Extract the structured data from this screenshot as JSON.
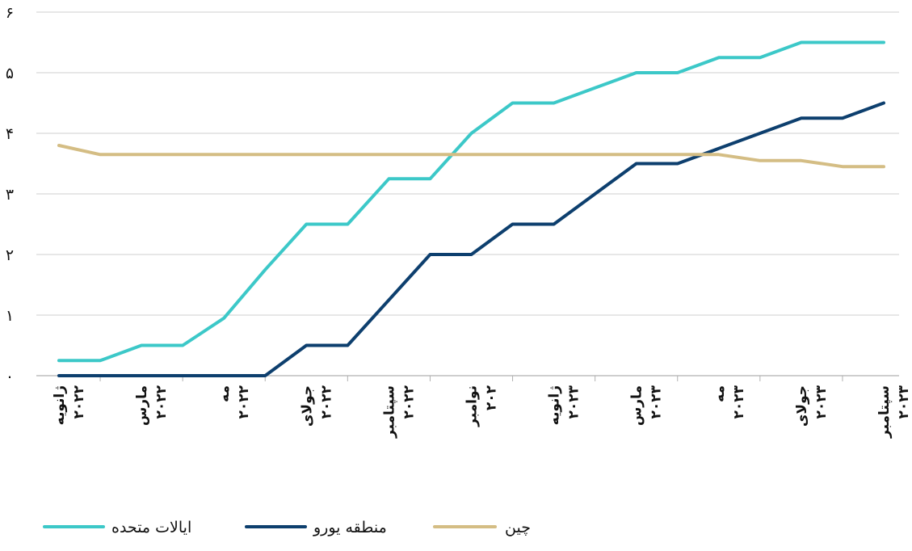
{
  "chart_data": {
    "type": "line",
    "title": "",
    "xlabel": "",
    "ylabel": "",
    "ylim": [
      0,
      6
    ],
    "yticks": [
      0,
      1,
      2,
      3,
      4,
      5,
      6
    ],
    "ytick_labels": [
      "۰",
      "۱",
      "۲",
      "۳",
      "۴",
      "۵",
      "۶"
    ],
    "grid": "horizontal",
    "legend_position": "bottom",
    "x_count": 21,
    "tick_labels": [
      {
        "index": 0,
        "line1": "ژانویه",
        "line2": "۲۰۲۲"
      },
      {
        "index": 2,
        "line1": "مارس",
        "line2": "۲۰۲۲"
      },
      {
        "index": 4,
        "line1": "مه",
        "line2": "۲۰۲۲"
      },
      {
        "index": 6,
        "line1": "جولای",
        "line2": "۲۰۲۲"
      },
      {
        "index": 8,
        "line1": "سپتامبر",
        "line2": "۲۰۲۲"
      },
      {
        "index": 10,
        "line1": "نوامبر",
        "line2": "۲۰۲"
      },
      {
        "index": 12,
        "line1": "ژانویه",
        "line2": "۲۰۲۳"
      },
      {
        "index": 14,
        "line1": "مارس",
        "line2": "۲۰۲۳"
      },
      {
        "index": 16,
        "line1": "مه",
        "line2": "۲۰۲۳"
      },
      {
        "index": 18,
        "line1": "جولای",
        "line2": "۲۰۲۳"
      },
      {
        "index": 20,
        "line1": "سپتامبر",
        "line2": "۲۰۲۳"
      }
    ],
    "series": [
      {
        "name": "ایالات متحده",
        "color": "#3cc8c8",
        "values": [
          0.25,
          0.25,
          0.5,
          0.5,
          0.95,
          1.75,
          2.5,
          2.5,
          3.25,
          3.25,
          4.0,
          4.5,
          4.5,
          4.75,
          5.0,
          5.0,
          5.25,
          5.25,
          5.5,
          5.5,
          5.5
        ]
      },
      {
        "name": "منطقه یورو",
        "color": "#0d3f6e",
        "values": [
          0.0,
          0.0,
          0.0,
          0.0,
          0.0,
          0.0,
          0.5,
          0.5,
          1.25,
          2.0,
          2.0,
          2.5,
          2.5,
          3.0,
          3.5,
          3.5,
          3.75,
          4.0,
          4.25,
          4.25,
          4.5
        ]
      },
      {
        "name": "چین",
        "color": "#d4bd84",
        "values": [
          3.8,
          3.65,
          3.65,
          3.65,
          3.65,
          3.65,
          3.65,
          3.65,
          3.65,
          3.65,
          3.65,
          3.65,
          3.65,
          3.65,
          3.65,
          3.65,
          3.65,
          3.55,
          3.55,
          3.45,
          3.45
        ]
      }
    ]
  }
}
